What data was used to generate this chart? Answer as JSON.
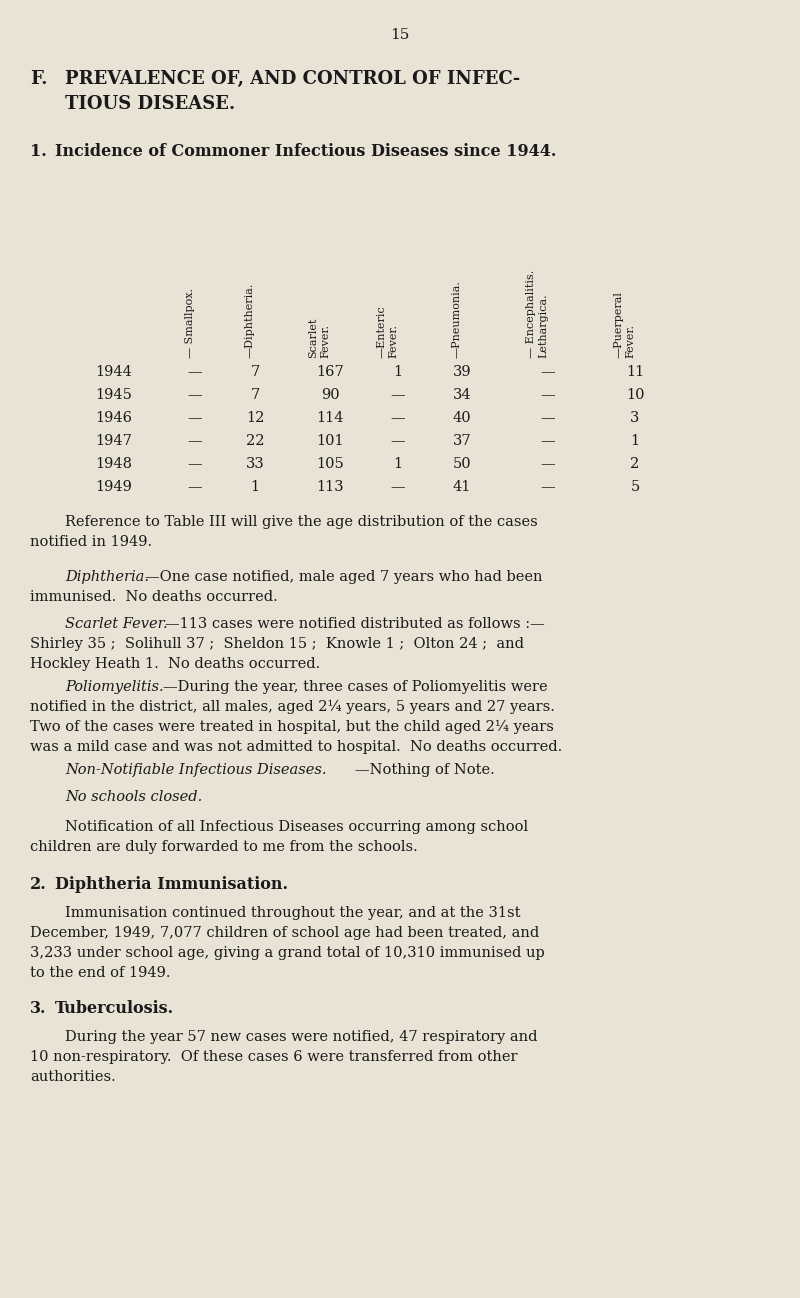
{
  "page_number": "15",
  "bg_color": "#e8e3d5",
  "text_color": "#1a1a1a",
  "fig_width": 8.0,
  "fig_height": 12.98,
  "dpi": 100,
  "table_col_headers": [
    "— Smallpox.",
    "—Diphtheria.",
    "Scarlet\nFever.",
    "—Enteric\nFever.",
    "—Pneumonia.",
    "— Encephalitis.\nLethargica.",
    "—Puerperal\nFever."
  ],
  "table_years": [
    "1944",
    "1945",
    "1946",
    "1947",
    "1948",
    "1949"
  ],
  "table_data": [
    [
      "—",
      "7",
      "167",
      "1",
      "39",
      "—",
      "11"
    ],
    [
      "—",
      "7",
      "90",
      "—",
      "34",
      "—",
      "10"
    ],
    [
      "—",
      "12",
      "114",
      "—",
      "40",
      "—",
      "3"
    ],
    [
      "—",
      "22",
      "101",
      "—",
      "37",
      "—",
      "1"
    ],
    [
      "—",
      "33",
      "105",
      "1",
      "50",
      "—",
      "2"
    ],
    [
      "—",
      "1",
      "113",
      "—",
      "41",
      "—",
      "5"
    ]
  ]
}
